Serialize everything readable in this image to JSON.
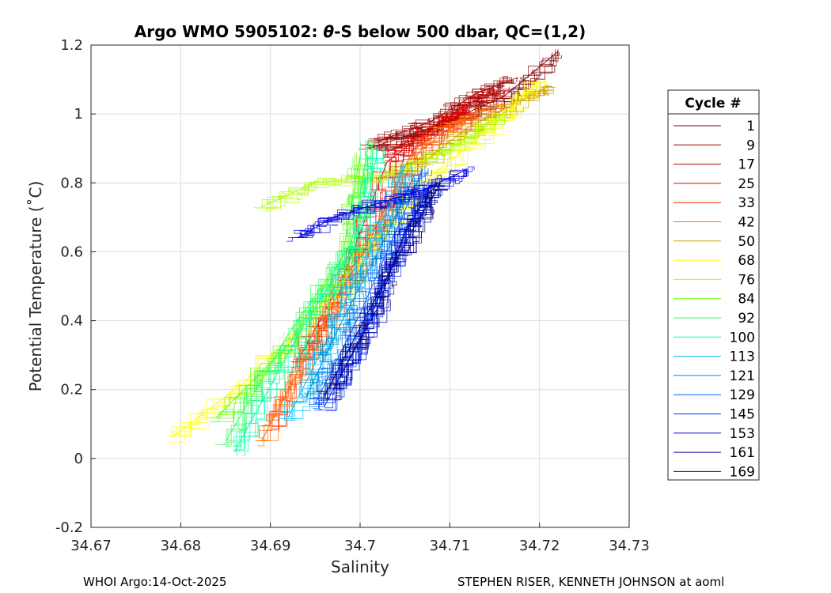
{
  "chart_data": {
    "type": "line",
    "title_prefix": "Argo WMO 5905102: ",
    "title_theta": "θ",
    "title_suffix": "-S below 500 dbar,  QC=(1,2)",
    "xlabel": "Salinity",
    "ylabel": "Potential Temperature (˚C)",
    "xlim": [
      34.67,
      34.73
    ],
    "ylim": [
      -0.2,
      1.2
    ],
    "xticks": [
      "34.67",
      "34.68",
      "34.69",
      "34.7",
      "34.71",
      "34.72",
      "34.73"
    ],
    "yticks": [
      "-0.2",
      "0",
      "0.2",
      "0.4",
      "0.6",
      "0.8",
      "1",
      "1.2"
    ],
    "grid": true,
    "legend_title": "Cycle #",
    "legend_position": "right",
    "series": [
      {
        "name": "1",
        "color": "#800000",
        "points": [
          [
            34.701,
            0.9
          ],
          [
            34.709,
            0.97
          ],
          [
            34.716,
            1.05
          ],
          [
            34.722,
            1.18
          ]
        ]
      },
      {
        "name": "9",
        "color": "#9a0000",
        "points": [
          [
            34.702,
            0.92
          ],
          [
            34.708,
            0.98
          ],
          [
            34.713,
            1.06
          ],
          [
            34.717,
            1.1
          ]
        ]
      },
      {
        "name": "17",
        "color": "#b80000",
        "points": [
          [
            34.703,
            0.89
          ],
          [
            34.707,
            0.94
          ],
          [
            34.712,
            1.03
          ],
          [
            34.716,
            1.07
          ]
        ]
      },
      {
        "name": "25",
        "color": "#e00000",
        "points": [
          [
            34.693,
            0.28
          ],
          [
            34.698,
            0.52
          ],
          [
            34.703,
            0.86
          ],
          [
            34.709,
            0.98
          ],
          [
            34.712,
            1.02
          ]
        ]
      },
      {
        "name": "33",
        "color": "#ff3000",
        "points": [
          [
            34.69,
            0.1
          ],
          [
            34.696,
            0.4
          ],
          [
            34.701,
            0.63
          ],
          [
            34.706,
            0.9
          ],
          [
            34.713,
            1.0
          ]
        ]
      },
      {
        "name": "42",
        "color": "#ff7000",
        "points": [
          [
            34.689,
            0.05
          ],
          [
            34.695,
            0.35
          ],
          [
            34.7,
            0.6
          ],
          [
            34.708,
            0.95
          ],
          [
            34.716,
            1.03
          ]
        ]
      },
      {
        "name": "50",
        "color": "#d0a000",
        "points": [
          [
            34.707,
            0.86
          ],
          [
            34.712,
            0.96
          ],
          [
            34.718,
            1.04
          ],
          [
            34.721,
            1.08
          ]
        ]
      },
      {
        "name": "68",
        "color": "#ffff00",
        "points": [
          [
            34.679,
            0.06
          ],
          [
            34.687,
            0.22
          ],
          [
            34.697,
            0.48
          ],
          [
            34.707,
            0.8
          ],
          [
            34.715,
            0.97
          ],
          [
            34.72,
            1.1
          ]
        ]
      },
      {
        "name": "76",
        "color": "#b0ff00",
        "points": [
          [
            34.689,
            0.73
          ],
          [
            34.695,
            0.8
          ],
          [
            34.703,
            0.82
          ],
          [
            34.71,
            0.9
          ],
          [
            34.716,
            1.0
          ]
        ]
      },
      {
        "name": "84",
        "color": "#60ff00",
        "points": [
          [
            34.684,
            0.12
          ],
          [
            34.692,
            0.33
          ],
          [
            34.698,
            0.58
          ],
          [
            34.7,
            0.88
          ]
        ]
      },
      {
        "name": "92",
        "color": "#30ff60",
        "points": [
          [
            34.685,
            0.05
          ],
          [
            34.692,
            0.36
          ],
          [
            34.699,
            0.62
          ],
          [
            34.701,
            0.92
          ]
        ]
      },
      {
        "name": "100",
        "color": "#00ffb0",
        "points": [
          [
            34.686,
            0.02
          ],
          [
            34.694,
            0.4
          ],
          [
            34.7,
            0.64
          ],
          [
            34.702,
            0.9
          ]
        ]
      },
      {
        "name": "113",
        "color": "#00c0ff",
        "points": [
          [
            34.692,
            0.12
          ],
          [
            34.697,
            0.38
          ],
          [
            34.702,
            0.66
          ],
          [
            34.705,
            0.85
          ]
        ]
      },
      {
        "name": "121",
        "color": "#0090d0",
        "points": [
          [
            34.694,
            0.18
          ],
          [
            34.698,
            0.4
          ],
          [
            34.703,
            0.65
          ],
          [
            34.706,
            0.82
          ]
        ]
      },
      {
        "name": "129",
        "color": "#0060ff",
        "points": [
          [
            34.695,
            0.16
          ],
          [
            34.7,
            0.42
          ],
          [
            34.704,
            0.66
          ],
          [
            34.707,
            0.84
          ]
        ]
      },
      {
        "name": "145",
        "color": "#0030ff",
        "points": [
          [
            34.696,
            0.15
          ],
          [
            34.701,
            0.4
          ],
          [
            34.705,
            0.65
          ],
          [
            34.708,
            0.8
          ]
        ]
      },
      {
        "name": "153",
        "color": "#0000e0",
        "points": [
          [
            34.693,
            0.64
          ],
          [
            34.697,
            0.7
          ],
          [
            34.702,
            0.74
          ],
          [
            34.707,
            0.78
          ],
          [
            34.712,
            0.84
          ]
        ]
      },
      {
        "name": "161",
        "color": "#0000b0",
        "points": [
          [
            34.697,
            0.2
          ],
          [
            34.702,
            0.44
          ],
          [
            34.705,
            0.66
          ],
          [
            34.708,
            0.78
          ]
        ]
      },
      {
        "name": "169",
        "color": "#000080",
        "points": [
          [
            34.696,
            0.18
          ],
          [
            34.701,
            0.43
          ],
          [
            34.706,
            0.67
          ],
          [
            34.709,
            0.8
          ]
        ]
      }
    ]
  },
  "footer": {
    "left": "WHOI Argo:14-Oct-2025",
    "right": "STEPHEN RISER, KENNETH JOHNSON at aoml"
  }
}
